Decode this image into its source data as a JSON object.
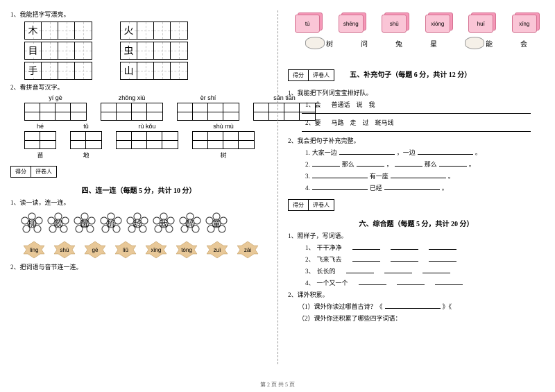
{
  "left": {
    "q1": "1、我能把字写漂亮。",
    "chars_row1": [
      "木",
      "火"
    ],
    "chars_row2": [
      "目",
      "虫"
    ],
    "chars_row3": [
      "手",
      "山"
    ],
    "q2": "2、看拼音写汉字。",
    "pinyin_r1": [
      {
        "py": "yí gè",
        "char": ""
      },
      {
        "py": "zhǒng xiù",
        "char": ""
      },
      {
        "py": "èr shí",
        "char": ""
      },
      {
        "py": "sān tiān",
        "char": ""
      }
    ],
    "pinyin_r2": [
      {
        "py": "hé",
        "char": "苗"
      },
      {
        "py": "tǔ",
        "char": "地"
      },
      {
        "py": "rù kǒu",
        "char": ""
      },
      {
        "py": "shù mù",
        "char": "树"
      }
    ],
    "score_labels": [
      "得分",
      "评卷人"
    ],
    "section4": "四、连一连（每题 5 分，共计 10 分）",
    "q4_1": "1、读一读，连一连。",
    "flowers": [
      "柳",
      "歌",
      "醒",
      "梳",
      "龄",
      "栽",
      "醉",
      "童"
    ],
    "leaves": [
      "líng",
      "shū",
      "gē",
      "liǔ",
      "xǐng",
      "tóng",
      "zuì",
      "zāi"
    ],
    "q4_2": "2、把词语与音节连一连。"
  },
  "right": {
    "cards": [
      "tù",
      "shēng",
      "shū",
      "xióng",
      "huī",
      "xīng"
    ],
    "chars": [
      "树",
      "问",
      "兔",
      "星",
      "能",
      "会"
    ],
    "score_labels": [
      "得分",
      "评卷人"
    ],
    "section5": "五、补充句子（每题 6 分，共计 12 分）",
    "q5_1": "1、我能把下列词宝宝排好队。",
    "q5_1_1_label": "1、会",
    "q5_1_1_words": "普通话　说　我",
    "q5_1_2_label": "2、要",
    "q5_1_2_words": "马路　走　过　斑马线",
    "q5_2": "2、我会把句子补充完整。",
    "q5_2_items": [
      {
        "n": "1.",
        "pre": "大家一边",
        "mid": "，一边",
        "end": "。"
      },
      {
        "n": "2.",
        "pre": "",
        "mid1": "那么",
        "mid2": "，",
        "mid3": "那么",
        "end": "。"
      },
      {
        "n": "3.",
        "pre": "",
        "mid": "有一座",
        "end": "。"
      },
      {
        "n": "4.",
        "pre": "",
        "mid": "已经",
        "end": "。"
      }
    ],
    "section6": "六、综合题（每题 5 分，共计 20 分）",
    "q6_1": "1、照样子，写词语。",
    "q6_1_items": [
      {
        "n": "1、",
        "label": "干干净净"
      },
      {
        "n": "2、",
        "label": "飞来飞去"
      },
      {
        "n": "3、",
        "label": "长长的"
      },
      {
        "n": "4、",
        "label": "一个又一个"
      }
    ],
    "q6_2": "2、课外积累。",
    "q6_2_1": "（1）课外你读过哪首古诗？《",
    "q6_2_1_end": "》《",
    "q6_2_2": "（2）课外你还积累了哪些四字词语："
  },
  "footer": "第 2 页 共 5 页",
  "colors": {
    "card_back": "#f598b8",
    "card_front": "#fac5d6",
    "card_border": "#d47090",
    "flower_stroke": "#333",
    "leaf_fill": "#e8c898"
  }
}
